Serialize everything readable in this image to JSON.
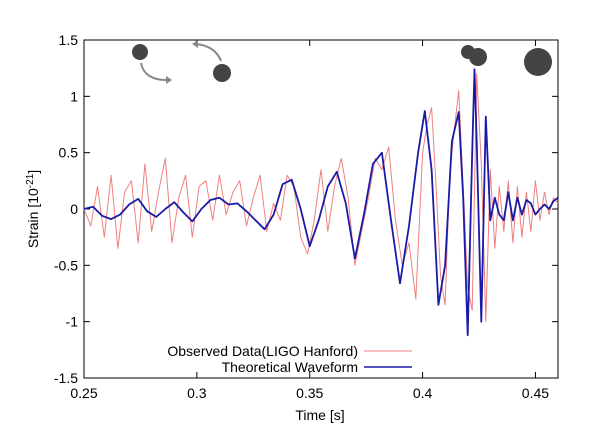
{
  "chart_data": {
    "type": "line",
    "xlabel": "Time [s]",
    "ylabel": {
      "base": "Strain [10",
      "exponent": "-21",
      "tail": "]"
    },
    "xlim": [
      0.25,
      0.46
    ],
    "ylim": [
      -1.5,
      1.5
    ],
    "xticks": [
      0.25,
      0.3,
      0.35,
      0.4,
      0.45
    ],
    "xtick_labels": [
      "0.25",
      "0.3",
      "0.35",
      "0.4",
      "0.45"
    ],
    "yticks": [
      -1.5,
      -1,
      -0.5,
      0,
      0.5,
      1,
      1.5
    ],
    "ytick_labels": [
      "-1.5",
      "-1",
      "-0.5",
      "0",
      "0.5",
      "1",
      "1.5"
    ],
    "grid": false,
    "legend_position": "bottom-left",
    "series": [
      {
        "name": "Observed Data(LIGO Hanford)",
        "color": "#f08080",
        "x": [
          0.25,
          0.253,
          0.256,
          0.259,
          0.262,
          0.265,
          0.268,
          0.271,
          0.274,
          0.277,
          0.28,
          0.283,
          0.286,
          0.289,
          0.292,
          0.295,
          0.298,
          0.301,
          0.304,
          0.307,
          0.31,
          0.313,
          0.316,
          0.319,
          0.322,
          0.325,
          0.328,
          0.331,
          0.334,
          0.337,
          0.34,
          0.343,
          0.346,
          0.349,
          0.352,
          0.355,
          0.358,
          0.361,
          0.364,
          0.367,
          0.37,
          0.373,
          0.376,
          0.379,
          0.382,
          0.385,
          0.388,
          0.391,
          0.394,
          0.397,
          0.4,
          0.402,
          0.404,
          0.406,
          0.408,
          0.41,
          0.412,
          0.414,
          0.416,
          0.418,
          0.42,
          0.422,
          0.424,
          0.426,
          0.428,
          0.43,
          0.432,
          0.434,
          0.436,
          0.438,
          0.44,
          0.442,
          0.444,
          0.446,
          0.448,
          0.45,
          0.452,
          0.454,
          0.456,
          0.458,
          0.46
        ],
        "y": [
          0.0,
          -0.15,
          0.2,
          -0.25,
          0.3,
          -0.35,
          0.15,
          0.25,
          -0.3,
          0.4,
          -0.2,
          0.15,
          0.45,
          -0.3,
          0.1,
          0.3,
          -0.25,
          0.2,
          0.25,
          -0.1,
          0.3,
          -0.05,
          0.15,
          0.25,
          -0.15,
          0.1,
          0.3,
          -0.2,
          0.05,
          -0.1,
          0.3,
          0.2,
          -0.25,
          -0.4,
          -0.1,
          0.35,
          -0.2,
          0.2,
          0.45,
          0.1,
          -0.5,
          -0.2,
          0.1,
          0.45,
          0.35,
          0.55,
          -0.1,
          -0.5,
          -0.3,
          -0.8,
          0.5,
          0.75,
          0.9,
          0.2,
          -0.6,
          -0.85,
          0.3,
          0.7,
          1.05,
          0.2,
          -0.7,
          -0.9,
          1.2,
          0.4,
          -1.0,
          0.35,
          -0.35,
          0.2,
          -0.2,
          0.25,
          -0.3,
          0.2,
          -0.25,
          0.15,
          -0.2,
          0.25,
          -0.1,
          0.15,
          -0.05,
          0.1,
          0.05
        ]
      },
      {
        "name": "Theoretical Waveform",
        "color": "#1a1aa6",
        "x": [
          0.25,
          0.254,
          0.258,
          0.262,
          0.266,
          0.27,
          0.274,
          0.278,
          0.282,
          0.286,
          0.29,
          0.294,
          0.298,
          0.302,
          0.306,
          0.31,
          0.314,
          0.318,
          0.322,
          0.326,
          0.33,
          0.334,
          0.338,
          0.342,
          0.346,
          0.35,
          0.354,
          0.358,
          0.362,
          0.366,
          0.37,
          0.374,
          0.378,
          0.382,
          0.386,
          0.39,
          0.394,
          0.398,
          0.401,
          0.404,
          0.407,
          0.41,
          0.413,
          0.416,
          0.418,
          0.42,
          0.422,
          0.423,
          0.424,
          0.426,
          0.428,
          0.43,
          0.432,
          0.434,
          0.436,
          0.438,
          0.44,
          0.442,
          0.444,
          0.446,
          0.448,
          0.45,
          0.452,
          0.454,
          0.456,
          0.458,
          0.46
        ],
        "y": [
          0.0,
          0.02,
          -0.06,
          -0.09,
          -0.05,
          0.04,
          0.09,
          -0.02,
          -0.07,
          0.0,
          0.06,
          -0.03,
          -0.11,
          0.0,
          0.08,
          0.1,
          0.04,
          0.05,
          -0.02,
          -0.1,
          -0.18,
          -0.05,
          0.22,
          0.26,
          0.0,
          -0.33,
          -0.1,
          0.2,
          0.33,
          0.05,
          -0.44,
          -0.05,
          0.4,
          0.5,
          -0.1,
          -0.66,
          -0.15,
          0.5,
          0.87,
          0.35,
          -0.85,
          -0.5,
          0.6,
          0.86,
          0.1,
          -1.12,
          0.5,
          1.24,
          0.6,
          -1.0,
          0.82,
          -0.1,
          0.1,
          -0.05,
          -0.1,
          0.15,
          -0.1,
          0.1,
          -0.05,
          0.08,
          0.05,
          -0.05,
          0.0,
          0.04,
          0.0,
          0.07,
          0.1
        ]
      }
    ]
  }
}
